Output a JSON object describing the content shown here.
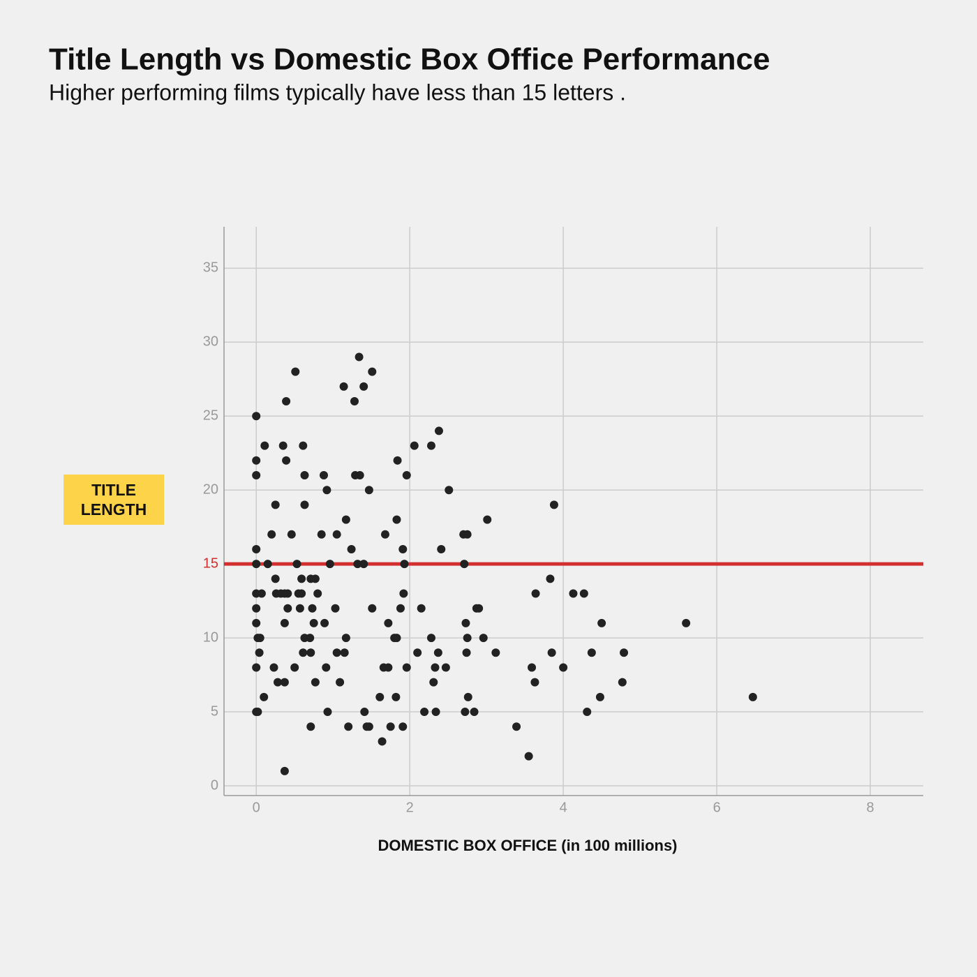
{
  "chart_data": {
    "type": "scatter",
    "title": "Title Length vs Domestic Box Office Performance",
    "subtitle": "Higher performing films typically have less than 15 letters .",
    "x_label": "DOMESTIC BOX OFFICE (in 100 millions)",
    "y_label": "TITLE LENGTH",
    "color": "#222222",
    "x": [
      0,
      0,
      0,
      0,
      0,
      0,
      0.07,
      0,
      0,
      0.02,
      0.05,
      0.04,
      0,
      0,
      0.02,
      0.1,
      0.11,
      0.15,
      0.2,
      0.25,
      0.25,
      0.23,
      0.26,
      0.28,
      0.32,
      0.35,
      0.39,
      0.39,
      0.37,
      0.41,
      0.37,
      0.41,
      0.37,
      0.37,
      0.46,
      0.51,
      0.53,
      0.5,
      0.55,
      0.57,
      0.59,
      0.59,
      0.61,
      0.63,
      0.63,
      0.63,
      0.61,
      0.71,
      0.7,
      0.71,
      0.73,
      0.75,
      0.77,
      0.77,
      0.71,
      0.8,
      0.85,
      0.88,
      0.92,
      0.89,
      0.91,
      0.93,
      0.96,
      1.03,
      1.05,
      1.05,
      1.09,
      1.14,
      1.15,
      1.17,
      1.17,
      1.2,
      1.24,
      1.28,
      1.29,
      1.32,
      1.34,
      1.35,
      1.4,
      1.4,
      1.41,
      1.44,
      1.47,
      1.47,
      1.51,
      1.51,
      1.61,
      1.64,
      1.68,
      1.66,
      1.72,
      1.72,
      1.75,
      1.8,
      1.84,
      1.83,
      1.83,
      1.82,
      1.88,
      1.91,
      1.93,
      1.92,
      1.91,
      1.96,
      1.96,
      2.06,
      2.1,
      2.15,
      2.19,
      2.28,
      2.28,
      2.31,
      2.33,
      2.34,
      2.37,
      2.38,
      2.41,
      2.47,
      2.51,
      2.7,
      2.71,
      2.73,
      2.74,
      2.72,
      2.75,
      2.75,
      2.76,
      2.84,
      2.87,
      2.9,
      2.96,
      3.01,
      3.12,
      3.39,
      3.55,
      3.59,
      3.63,
      3.64,
      3.83,
      3.85,
      3.88,
      4.0,
      4.13,
      4.27,
      4.31,
      4.37,
      4.48,
      4.5,
      4.77,
      4.79,
      5.6,
      6.47
    ],
    "y": [
      25,
      22,
      21,
      16,
      15,
      13,
      13,
      12,
      11,
      10,
      10,
      9,
      8,
      5,
      5,
      6,
      23,
      15,
      17,
      19,
      14,
      8,
      13,
      7,
      13,
      23,
      26,
      22,
      13,
      13,
      11,
      12,
      7,
      1,
      17,
      28,
      15,
      8,
      13,
      12,
      13,
      14,
      23,
      21,
      19,
      10,
      9,
      14,
      10,
      9,
      12,
      11,
      14,
      7,
      4,
      13,
      17,
      21,
      20,
      11,
      8,
      5,
      15,
      12,
      17,
      9,
      7,
      27,
      9,
      10,
      18,
      4,
      16,
      26,
      21,
      15,
      29,
      21,
      27,
      15,
      5,
      4,
      20,
      4,
      28,
      12,
      6,
      3,
      17,
      8,
      11,
      8,
      4,
      10,
      22,
      18,
      10,
      6,
      12,
      16,
      15,
      13,
      4,
      21,
      8,
      23,
      9,
      12,
      5,
      23,
      10,
      7,
      8,
      5,
      9,
      24,
      16,
      8,
      20,
      17,
      15,
      11,
      9,
      5,
      17,
      10,
      6,
      5,
      12,
      12,
      10,
      18,
      9,
      4,
      2,
      8,
      7,
      13,
      14,
      9,
      19,
      8,
      13,
      13,
      5,
      9,
      6,
      11,
      7,
      9,
      11,
      6
    ],
    "hline": {
      "value": 15,
      "color": "#d32f2f"
    },
    "xlim": [
      -0.42,
      8.69
    ],
    "xticks": [
      0,
      2,
      4,
      6,
      8
    ],
    "ylim": [
      -0.66,
      37.8
    ],
    "yticks": [
      0,
      5,
      10,
      15,
      20,
      25,
      30,
      35
    ],
    "grid": true
  }
}
